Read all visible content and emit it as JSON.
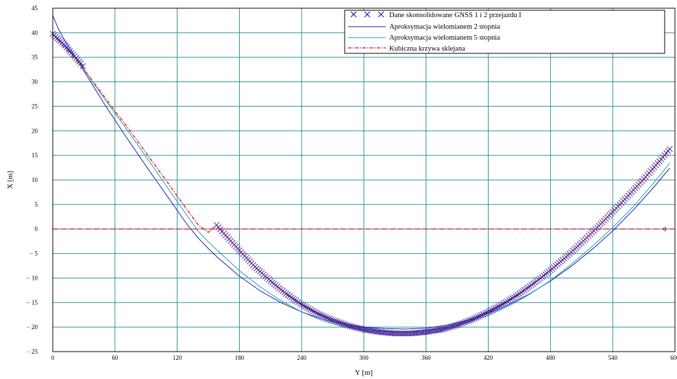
{
  "chart_data": {
    "type": "line",
    "title": "",
    "xlabel": "Y [m]",
    "ylabel": "X [m]",
    "xlim": [
      0,
      600
    ],
    "ylim": [
      -25,
      45
    ],
    "xticks": [
      "0",
      "60",
      "120",
      "180",
      "240",
      "300",
      "360",
      "420",
      "480",
      "540",
      "600"
    ],
    "yticks": [
      "45",
      "40",
      "35",
      "30",
      "25",
      "20",
      "15",
      "10",
      "5",
      "0",
      "− 5",
      "− 10",
      "− 15",
      "− 20",
      "− 25"
    ],
    "xtick_values": [
      0,
      60,
      120,
      180,
      240,
      300,
      360,
      420,
      480,
      540,
      600
    ],
    "ytick_values": [
      45,
      40,
      35,
      30,
      25,
      20,
      15,
      10,
      5,
      0,
      -5,
      -10,
      -15,
      -20,
      -25
    ],
    "grid": true,
    "legend_position": "top-right",
    "zero_line_label": "0",
    "series": [
      {
        "name": "Dane skonsolidowane GNSS 1 i 2 przejazdu I",
        "marker": "x",
        "color": "#1a1aa8",
        "segments": [
          {
            "x": [
              0,
              3,
              6,
              9,
              12,
              15,
              18,
              21,
              24,
              27,
              29
            ],
            "y": [
              39.8,
              39.2,
              38.6,
              38.0,
              37.4,
              36.6,
              35.9,
              35.2,
              34.5,
              33.8,
              33.2
            ]
          },
          {
            "x": [
              158,
              165,
              175,
              185,
              195,
              210,
              225,
              240,
              255,
              270,
              285,
              300,
              315,
              330,
              345,
              360,
              375,
              390,
              405,
              420,
              435,
              450,
              465,
              480,
              495,
              510,
              525,
              540,
              555,
              570,
              585,
              595
            ],
            "y": [
              0.8,
              -0.9,
              -3.2,
              -5.5,
              -7.7,
              -10.6,
              -13.2,
              -15.4,
              -17.2,
              -18.6,
              -19.7,
              -20.5,
              -21.0,
              -21.3,
              -21.3,
              -21.0,
              -20.5,
              -19.6,
              -18.4,
              -16.9,
              -15.2,
              -13.2,
              -10.9,
              -8.4,
              -5.7,
              -2.8,
              0.3,
              3.5,
              6.8,
              10.2,
              13.8,
              16.3
            ]
          }
        ]
      },
      {
        "name": "Aproksymacja wielomianem 2 stopnia",
        "color": "#1a1aa8",
        "x": [
          0,
          5,
          10,
          20,
          30,
          40,
          50,
          60,
          70,
          80,
          90,
          100,
          110,
          120,
          130,
          140,
          150,
          160,
          180,
          200,
          220,
          240,
          260,
          280,
          300,
          320,
          340,
          360,
          380,
          400,
          420,
          440,
          460,
          480,
          500,
          520,
          540,
          560,
          580,
          595
        ],
        "y": [
          43.5,
          41.0,
          39.0,
          35.6,
          32.2,
          28.8,
          25.4,
          22.2,
          19.0,
          15.9,
          12.8,
          9.8,
          6.8,
          3.8,
          0.8,
          -1.8,
          -4.0,
          -6.0,
          -9.6,
          -12.6,
          -15.0,
          -16.9,
          -18.4,
          -19.4,
          -20.0,
          -20.3,
          -20.4,
          -20.2,
          -19.6,
          -18.6,
          -17.2,
          -15.4,
          -13.2,
          -10.6,
          -7.6,
          -4.2,
          -0.4,
          3.9,
          8.6,
          12.4
        ]
      },
      {
        "name": "Aproksymacja wielomianem 5 stopnia",
        "color": "#2a9ab0",
        "x": [
          0,
          10,
          20,
          30,
          40,
          50,
          60,
          70,
          80,
          90,
          100,
          110,
          120,
          130,
          140,
          150,
          160,
          180,
          200,
          220,
          240,
          260,
          280,
          300,
          320,
          340,
          360,
          380,
          400,
          420,
          440,
          460,
          480,
          500,
          520,
          540,
          560,
          580,
          595
        ],
        "y": [
          39.6,
          37.4,
          35.3,
          32.6,
          29.5,
          26.5,
          23.6,
          20.7,
          17.7,
          14.7,
          11.7,
          8.6,
          5.6,
          2.6,
          -0.4,
          -2.6,
          -4.6,
          -8.5,
          -11.8,
          -14.6,
          -16.9,
          -18.7,
          -19.9,
          -20.6,
          -20.9,
          -21.0,
          -20.7,
          -20.1,
          -19.1,
          -17.6,
          -15.7,
          -13.3,
          -10.5,
          -7.2,
          -3.6,
          0.3,
          4.6,
          9.5,
          13.4
        ]
      },
      {
        "name": "Kubiczna krzywa sklejana",
        "color": "#e0202a",
        "dash": true,
        "x": [
          0,
          10,
          20,
          30,
          40,
          50,
          60,
          70,
          80,
          90,
          100,
          110,
          120,
          130,
          140,
          150,
          158,
          165,
          175,
          185,
          195,
          210,
          225,
          240,
          255,
          270,
          285,
          300,
          315,
          330,
          345,
          360,
          375,
          390,
          405,
          420,
          435,
          450,
          465,
          480,
          495,
          510,
          525,
          540,
          555,
          570,
          585,
          595
        ],
        "y": [
          39.8,
          37.3,
          35.0,
          32.6,
          29.7,
          26.9,
          24.0,
          21.3,
          18.4,
          15.5,
          12.6,
          9.7,
          6.7,
          3.8,
          0.9,
          -0.7,
          0.8,
          -0.9,
          -3.2,
          -5.5,
          -7.7,
          -10.6,
          -13.2,
          -15.4,
          -17.2,
          -18.6,
          -19.7,
          -20.5,
          -21.0,
          -21.3,
          -21.3,
          -21.0,
          -20.5,
          -19.6,
          -18.4,
          -16.9,
          -15.2,
          -13.2,
          -10.9,
          -8.4,
          -5.7,
          -2.8,
          0.3,
          3.5,
          6.8,
          10.2,
          13.8,
          16.3
        ]
      }
    ]
  }
}
